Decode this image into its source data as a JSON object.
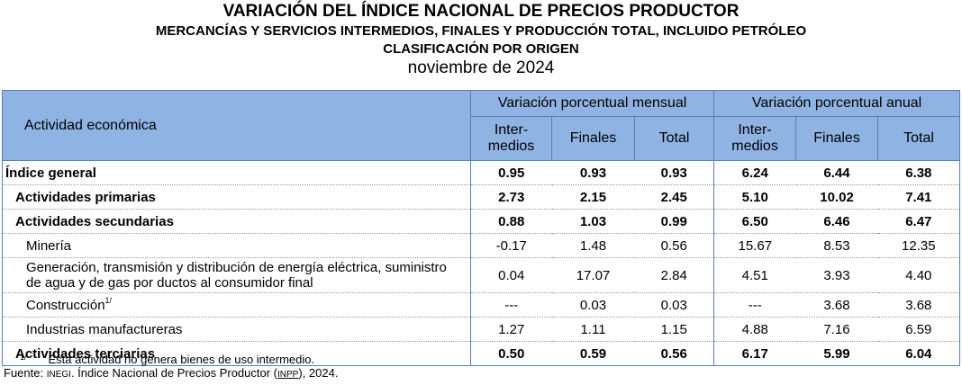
{
  "titles": {
    "line1": "VARIACIÓN DEL ÍNDICE NACIONAL DE PRECIOS PRODUCTOR",
    "line2": "MERCANCÍAS Y SERVICIOS INTERMEDIOS, FINALES Y PRODUCCIÓN TOTAL, INCLUIDO PETRÓLEO",
    "line3": "CLASIFICACIÓN POR ORIGEN",
    "line4": "noviembre de 2024"
  },
  "header": {
    "activity": "Actividad económica",
    "group_monthly": "Variación porcentual mensual",
    "group_annual": "Variación porcentual anual",
    "col_inter_1": "Inter-",
    "col_inter_2": "medios",
    "col_finales": "Finales",
    "col_total": "Total"
  },
  "rows": [
    {
      "label": "Índice general",
      "m_int": "0.95",
      "m_fin": "0.93",
      "m_tot": "0.93",
      "a_int": "6.24",
      "a_fin": "6.44",
      "a_tot": "6.38"
    },
    {
      "label": "Actividades primarias",
      "m_int": "2.73",
      "m_fin": "2.15",
      "m_tot": "2.45",
      "a_int": "5.10",
      "a_fin": "10.02",
      "a_tot": "7.41"
    },
    {
      "label": "Actividades secundarias",
      "m_int": "0.88",
      "m_fin": "1.03",
      "m_tot": "0.99",
      "a_int": "6.50",
      "a_fin": "6.46",
      "a_tot": "6.47"
    },
    {
      "label": "Minería",
      "m_int": "-0.17",
      "m_fin": "1.48",
      "m_tot": "0.56",
      "a_int": "15.67",
      "a_fin": "8.53",
      "a_tot": "12.35"
    },
    {
      "label_1": "Generación, transmisión y distribución de energía eléctrica, suministro",
      "label_2": "de agua y de gas por ductos al consumidor final",
      "m_int": "0.04",
      "m_fin": "17.07",
      "m_tot": "2.84",
      "a_int": "4.51",
      "a_fin": "3.93",
      "a_tot": "4.40"
    },
    {
      "label": "Construcción",
      "sup": "1/",
      "m_int": "---",
      "m_fin": "0.03",
      "m_tot": "0.03",
      "a_int": "---",
      "a_fin": "3.68",
      "a_tot": "3.68"
    },
    {
      "label": "Industrias manufactureras",
      "m_int": "1.27",
      "m_fin": "1.11",
      "m_tot": "1.15",
      "a_int": "4.88",
      "a_fin": "7.16",
      "a_tot": "6.59"
    },
    {
      "label": "Actividades terciarias",
      "m_int": "0.50",
      "m_fin": "0.59",
      "m_tot": "0.56",
      "a_int": "6.17",
      "a_fin": "5.99",
      "a_tot": "6.04"
    }
  ],
  "notes": {
    "sup": "1/",
    "note1": "Esta actividad no genera bienes de uso intermedio.",
    "source_label": "Fuente:",
    "source_org": "INEGI",
    "source_text_a": ". Índice Nacional de Precios Productor (",
    "source_abbr": "INPP",
    "source_text_b": "), 2024."
  },
  "colors": {
    "header_bg": "#8fb4e3",
    "border": "#5a7fb0"
  }
}
